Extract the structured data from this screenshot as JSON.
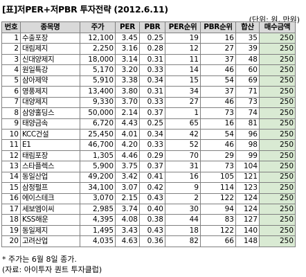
{
  "title": "[표]저PER+저PBR 투자전략 (2012.6.11)",
  "unit": "(단위: 원, 만원)",
  "headers": [
    "번호",
    "종목명",
    "주가",
    "PER",
    "PBR",
    "PER순위",
    "PBR순위",
    "합산",
    "매수금액"
  ],
  "rows": [
    [
      "1",
      "수출포장",
      "12,100",
      "3.45",
      "0.25",
      "19",
      "16",
      "35",
      "250"
    ],
    [
      "2",
      "대림제지",
      "2,250",
      "3.16",
      "0.28",
      "12",
      "27",
      "39",
      "250"
    ],
    [
      "3",
      "신대양제지",
      "18,000",
      "3.14",
      "0.31",
      "11",
      "37",
      "48",
      "250"
    ],
    [
      "4",
      "원일특강",
      "5,170",
      "3.20",
      "0.33",
      "14",
      "46",
      "60",
      "250"
    ],
    [
      "5",
      "삼아제약",
      "5,910",
      "3.38",
      "0.34",
      "15",
      "54",
      "69",
      "250"
    ],
    [
      "6",
      "영풍제지",
      "13,400",
      "3.80",
      "0.31",
      "34",
      "37",
      "71",
      "250"
    ],
    [
      "7",
      "대양제지",
      "9,330",
      "3.70",
      "0.33",
      "27",
      "46",
      "73",
      "250"
    ],
    [
      "8",
      "삼양홀딩스",
      "50,000",
      "2.14",
      "0.37",
      "1",
      "73",
      "74",
      "250"
    ],
    [
      "9",
      "태양금속",
      "6,720",
      "4.43",
      "0.25",
      "65",
      "16",
      "81",
      "250"
    ],
    [
      "10",
      "KCC건설",
      "25,450",
      "4.01",
      "0.34",
      "42",
      "54",
      "96",
      "250"
    ],
    [
      "11",
      "E1",
      "46,700",
      "4.20",
      "0.33",
      "52",
      "46",
      "98",
      "250"
    ],
    [
      "12",
      "태림포장",
      "1,305",
      "4.46",
      "0.29",
      "70",
      "29",
      "99",
      "250"
    ],
    [
      "13",
      "스타플렉스",
      "5,900",
      "3.75",
      "0.37",
      "31",
      "73",
      "104",
      "250"
    ],
    [
      "14",
      "동일산업",
      "49,200",
      "3.42",
      "0.41",
      "16",
      "105",
      "121",
      "250"
    ],
    [
      "15",
      "삼정펄프",
      "34,100",
      "3.07",
      "0.42",
      "9",
      "114",
      "123",
      "250"
    ],
    [
      "16",
      "에이스테크",
      "3,070",
      "2.15",
      "0.43",
      "2",
      "122",
      "124",
      "250"
    ],
    [
      "17",
      "세보엠이씨",
      "2,985",
      "3.74",
      "0.40",
      "30",
      "94",
      "124",
      "250"
    ],
    [
      "18",
      "KSS해운",
      "4,395",
      "4.08",
      "0.38",
      "44",
      "83",
      "127",
      "250"
    ],
    [
      "19",
      "동일제지",
      "1,495",
      "3.43",
      "0.43",
      "18",
      "122",
      "140",
      "250"
    ],
    [
      "20",
      "고려산업",
      "4,035",
      "4.63",
      "0.36",
      "82",
      "66",
      "148",
      "250"
    ]
  ],
  "notes": [
    "* 주가는 6월 8일 종가.",
    "(자료: 아이투자 퀀트 투자클럽)"
  ]
}
